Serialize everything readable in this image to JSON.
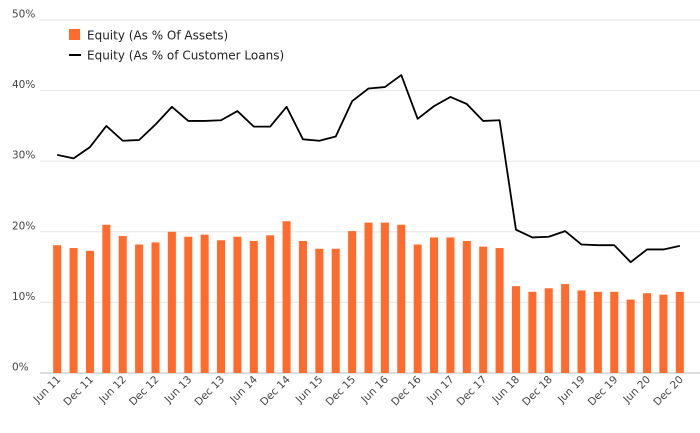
{
  "chart_data": {
    "type": "bar",
    "title": "",
    "xlabel": "",
    "ylabel": "",
    "ylim": [
      0,
      50
    ],
    "y_ticks": [
      "0%",
      "10%",
      "20%",
      "30%",
      "40%",
      "50%"
    ],
    "grid": true,
    "legend_position": "top-left",
    "categories": [
      "Jun 11",
      "Sep 11",
      "Dec 11",
      "Mar 12",
      "Jun 12",
      "Sep 12",
      "Dec 12",
      "Mar 13",
      "Jun 13",
      "Sep 13",
      "Dec 13",
      "Mar 14",
      "Jun 14",
      "Sep 14",
      "Dec 14",
      "Mar 15",
      "Jun 15",
      "Sep 15",
      "Dec 15",
      "Mar 16",
      "Jun 16",
      "Sep 16",
      "Dec 16",
      "Mar 17",
      "Jun 17",
      "Sep 17",
      "Dec 17",
      "Mar 18",
      "Jun 18",
      "Sep 18",
      "Dec 18",
      "Mar 19",
      "Jun 19",
      "Sep 19",
      "Dec 19",
      "Mar 20",
      "Jun 20",
      "Sep 20",
      "Dec 20"
    ],
    "x_tick_labels": [
      "Jun 11",
      "Dec 11",
      "Jun 12",
      "Dec 12",
      "Jun 13",
      "Dec 13",
      "Jun 14",
      "Dec 14",
      "Jun 15",
      "Dec 15",
      "Jun 16",
      "Dec 16",
      "Jun 17",
      "Dec 17",
      "Jun 18",
      "Dec 18",
      "Jun 19",
      "Dec 19",
      "Jun 20",
      "Dec 20"
    ],
    "series": [
      {
        "name": "Equity (As % Of Assets)",
        "kind": "bar",
        "color": "#ff6b2c",
        "values": [
          18.1,
          17.7,
          17.3,
          21.0,
          19.4,
          18.2,
          18.5,
          20.0,
          19.3,
          19.6,
          18.8,
          19.3,
          18.7,
          19.5,
          21.5,
          18.7,
          17.6,
          17.6,
          20.1,
          21.3,
          21.3,
          21.0,
          18.2,
          19.2,
          19.2,
          18.7,
          17.9,
          17.7,
          12.3,
          11.5,
          12.0,
          12.6,
          11.7,
          11.5,
          11.5,
          10.4,
          11.3,
          11.1,
          11.5
        ]
      },
      {
        "name": "Equity (As % of Customer Loans)",
        "kind": "line",
        "color": "#000000",
        "values": [
          30.9,
          30.4,
          32.0,
          35.0,
          32.9,
          33.0,
          35.2,
          37.7,
          35.7,
          35.7,
          35.8,
          37.1,
          34.9,
          34.9,
          37.7,
          33.1,
          32.9,
          33.5,
          38.5,
          40.3,
          40.5,
          42.2,
          36.0,
          37.8,
          39.1,
          38.1,
          35.7,
          35.8,
          20.3,
          19.2,
          19.3,
          20.1,
          18.2,
          18.1,
          18.1,
          15.7,
          17.5,
          17.5,
          18.0
        ]
      }
    ]
  }
}
